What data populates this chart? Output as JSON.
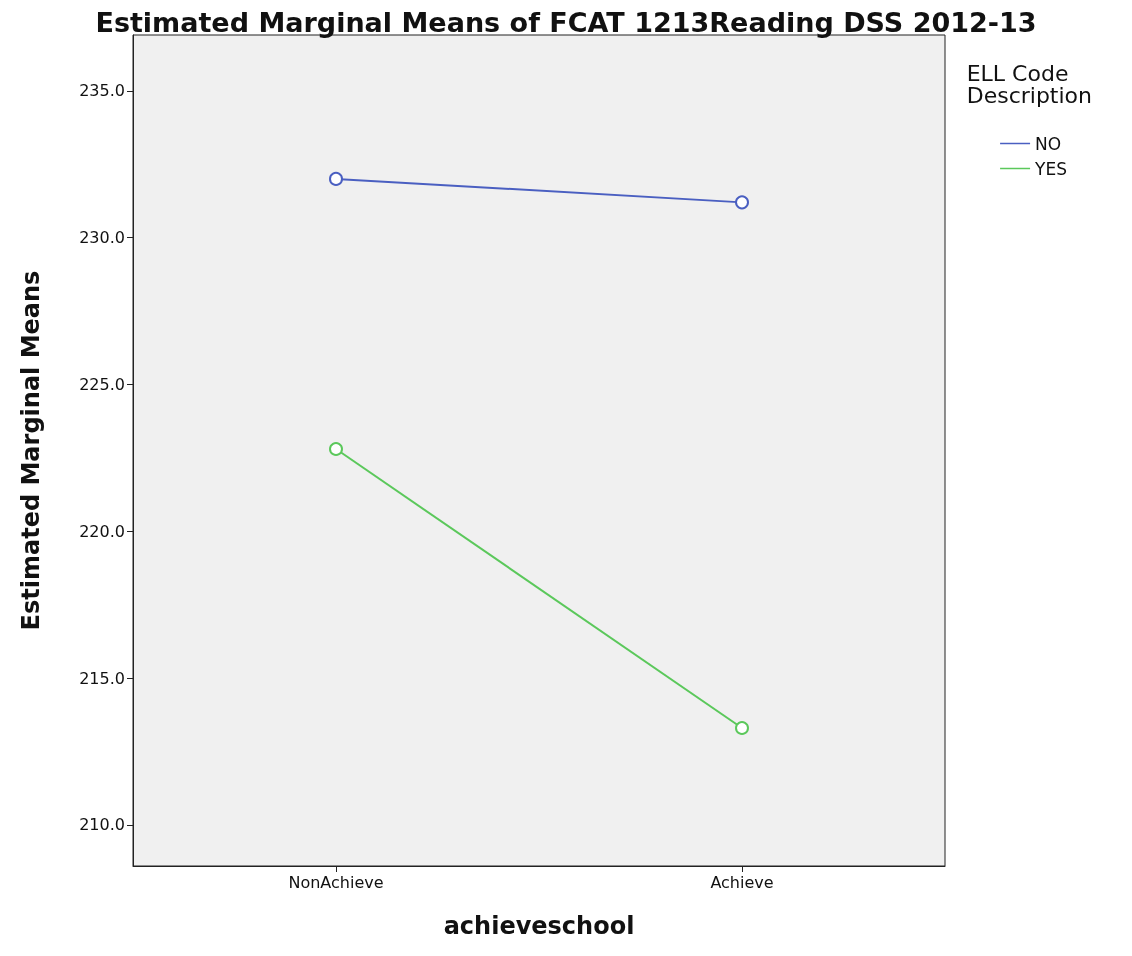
{
  "chart_data": {
    "type": "line",
    "title": "Estimated Marginal Means of FCAT 1213Reading DSS 2012-13",
    "xlabel": "achieveschool",
    "ylabel": "Estimated Marginal Means",
    "legend_title": "ELL Code Description",
    "categories": [
      "NonAchieve",
      "Achieve"
    ],
    "series": [
      {
        "name": "NO",
        "color": "#4a5fc1",
        "values": [
          232.0,
          231.2
        ]
      },
      {
        "name": "YES",
        "color": "#5bc85b",
        "values": [
          222.8,
          213.3
        ]
      }
    ],
    "ylim": [
      208.6,
      236.9
    ],
    "yticks": [
      {
        "value": 210,
        "label": "210.0"
      },
      {
        "value": 215,
        "label": "215.0"
      },
      {
        "value": 220,
        "label": "220.0"
      },
      {
        "value": 225,
        "label": "225.0"
      },
      {
        "value": 230,
        "label": "230.0"
      },
      {
        "value": 235,
        "label": "235.0"
      }
    ],
    "grid": false,
    "legend": "top right",
    "marker": "circle",
    "line_style": "solid"
  }
}
